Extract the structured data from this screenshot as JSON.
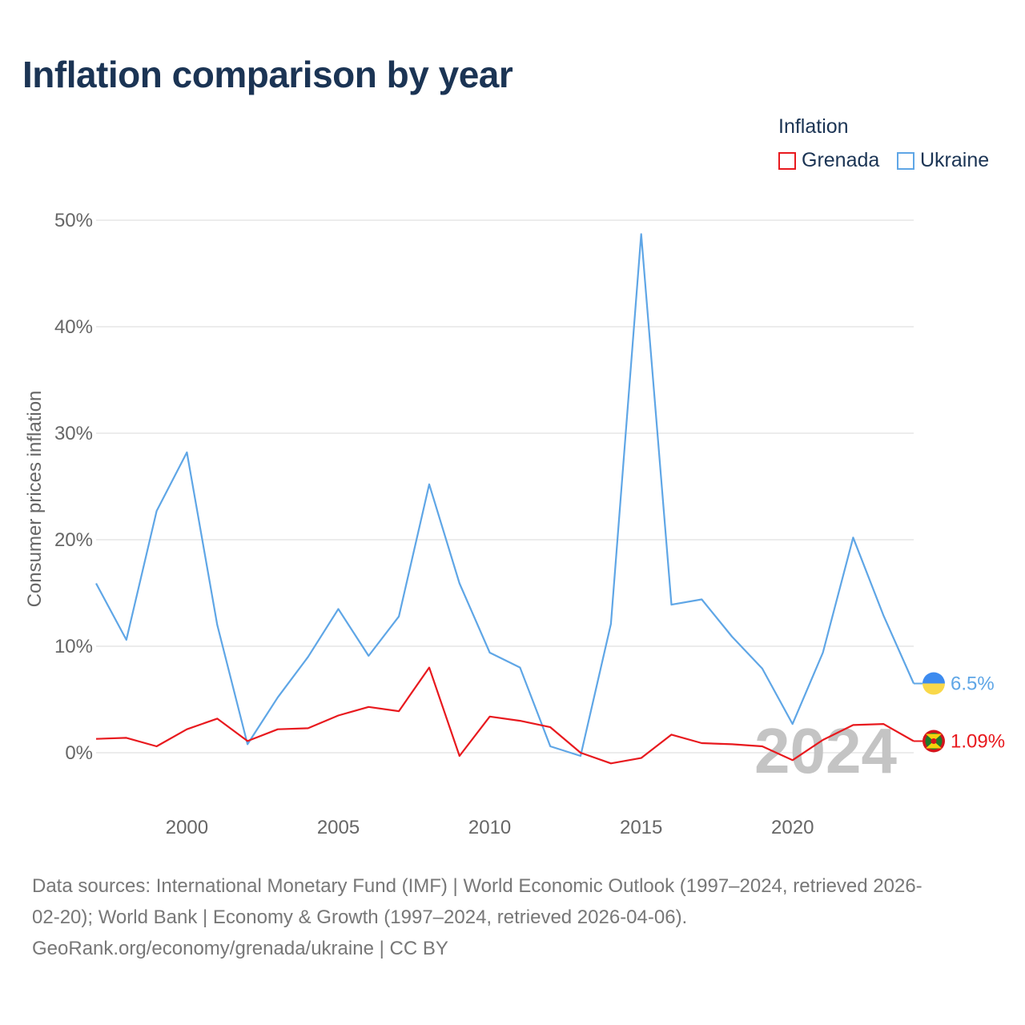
{
  "title": "Inflation comparison by year",
  "legend": {
    "title": "Inflation",
    "items": [
      {
        "name": "Grenada",
        "color": "#e8191e"
      },
      {
        "name": "Ukraine",
        "color": "#5fa6e6"
      }
    ]
  },
  "chart_data": {
    "type": "line",
    "title": "Inflation comparison by year",
    "xlabel": "",
    "ylabel": "Consumer prices inflation",
    "x": [
      1997,
      1998,
      1999,
      2000,
      2001,
      2002,
      2003,
      2004,
      2005,
      2006,
      2007,
      2008,
      2009,
      2010,
      2011,
      2012,
      2013,
      2014,
      2015,
      2016,
      2017,
      2018,
      2019,
      2020,
      2021,
      2022,
      2023,
      2024
    ],
    "xlim": [
      1997,
      2024
    ],
    "xticks": [
      2000,
      2005,
      2010,
      2015,
      2020
    ],
    "ylim": [
      -5,
      50
    ],
    "yticks": [
      0,
      10,
      20,
      30,
      40,
      50
    ],
    "ytick_labels": [
      "0%",
      "10%",
      "20%",
      "30%",
      "40%",
      "50%"
    ],
    "grid": true,
    "series": [
      {
        "name": "Ukraine",
        "color": "#5fa6e6",
        "values": [
          15.9,
          10.6,
          22.7,
          28.2,
          12.0,
          0.8,
          5.2,
          9.0,
          13.5,
          9.1,
          12.8,
          25.2,
          15.9,
          9.4,
          8.0,
          0.6,
          -0.3,
          12.1,
          48.7,
          13.9,
          14.4,
          10.9,
          7.9,
          2.7,
          9.4,
          20.2,
          12.9,
          6.5
        ],
        "end_label": "6.5%"
      },
      {
        "name": "Grenada",
        "color": "#e8191e",
        "values": [
          1.3,
          1.4,
          0.6,
          2.2,
          3.2,
          1.1,
          2.2,
          2.3,
          3.5,
          4.3,
          3.9,
          8.0,
          -0.3,
          3.4,
          3.0,
          2.4,
          0.0,
          -1.0,
          -0.5,
          1.7,
          0.9,
          0.8,
          0.6,
          -0.7,
          1.2,
          2.6,
          2.7,
          1.09
        ],
        "end_label": "1.09%"
      }
    ],
    "year_watermark": "2024"
  },
  "sources": {
    "line1": "Data sources: International Monetary Fund (IMF) | World Economic Outlook (1997–2024, retrieved 2026-",
    "line2": "02-20); World Bank | Economy & Growth (1997–2024, retrieved 2026-04-06).",
    "line3": "GeoRank.org/economy/grenada/ukraine | CC BY"
  }
}
